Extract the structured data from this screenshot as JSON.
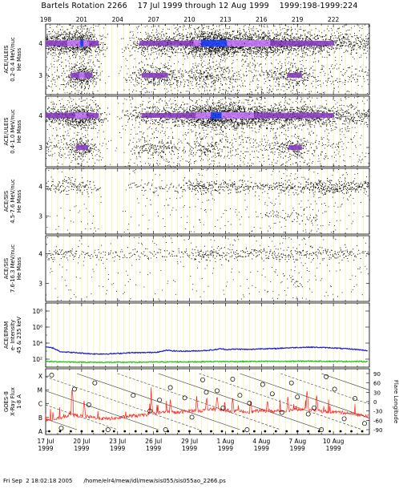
{
  "page_title": "Bartels Rotation 2266    17 Jul 1999 through 12 Aug 1999    1999:198-1999:224",
  "footer": {
    "timestamp": "Fri Sep  2 18:02:18 2005",
    "path": "/home/elr4/mew/idl/mew/sis055/sis055ao_2266.ps"
  },
  "colors": {
    "background": "#ffffff",
    "day_line": "#f4f0a0",
    "density_low": "#000000",
    "density_mid": "#8c3cc8",
    "density_high": "#c878ff",
    "density_peak": "#2040ff",
    "electron_low": "#10c010",
    "electron_high": "#1818d0",
    "xray_flux": "#ff2020"
  },
  "chart_data": [
    {
      "type": "scatter",
      "panel": "ULEIS 0.2-0.4",
      "ylabel": [
        "ACE/ULEIS",
        "0.2-0.4 MeV/nuc",
        "He Mass"
      ],
      "y_ticks": [
        "4",
        "3"
      ],
      "top_ticks": [
        "198",
        "201",
        "204",
        "207",
        "210",
        "213",
        "216",
        "219",
        "222"
      ],
      "x_range_doy": [
        198,
        225
      ],
      "ylim": [
        2.4,
        4.6
      ],
      "bands": [
        {
          "mass": 4.0,
          "label": "He-4",
          "activity": [
            [
              198,
              0.6
            ],
            [
              199.5,
              0.7
            ],
            [
              201,
              0.95
            ],
            [
              202.5,
              0.4
            ],
            [
              203.5,
              0.0
            ],
            [
              205,
              0.25
            ],
            [
              206,
              0.5
            ],
            [
              207.5,
              0.55
            ],
            [
              209.5,
              0.55
            ],
            [
              211,
              0.95
            ],
            [
              212,
              1.0
            ],
            [
              214,
              0.85
            ],
            [
              216,
              0.8
            ],
            [
              218,
              0.65
            ],
            [
              220,
              0.6
            ],
            [
              222,
              0.45
            ],
            [
              224.5,
              0.4
            ]
          ]
        },
        {
          "mass": 3.0,
          "label": "He-3",
          "activity": [
            [
              198,
              0.2
            ],
            [
              199.5,
              0.25
            ],
            [
              201,
              0.85
            ],
            [
              202.5,
              0.15
            ],
            [
              203.5,
              0.0
            ],
            [
              205,
              0.2
            ],
            [
              206,
              0.45
            ],
            [
              207.5,
              0.55
            ],
            [
              209.5,
              0.25
            ],
            [
              211,
              0.45
            ],
            [
              212,
              0.4
            ],
            [
              214,
              0.2
            ],
            [
              216,
              0.2
            ],
            [
              219,
              0.55
            ],
            [
              220,
              0.2
            ],
            [
              222,
              0.2
            ],
            [
              224.5,
              0.15
            ]
          ]
        }
      ]
    },
    {
      "type": "scatter",
      "panel": "ULEIS 0.4-1.0",
      "ylabel": [
        "ACE/ULEIS",
        "0.4-1.0 MeV/nuc",
        "He Mass"
      ],
      "y_ticks": [
        "4",
        "3"
      ],
      "x_range_doy": [
        198,
        225
      ],
      "ylim": [
        2.4,
        4.6
      ],
      "bands": [
        {
          "mass": 4.0,
          "label": "He-4",
          "activity": [
            [
              198,
              0.55
            ],
            [
              199.5,
              0.6
            ],
            [
              201,
              0.85
            ],
            [
              202.5,
              0.4
            ],
            [
              203.5,
              0.05
            ],
            [
              205,
              0.3
            ],
            [
              206,
              0.45
            ],
            [
              207.5,
              0.5
            ],
            [
              209.5,
              0.55
            ],
            [
              211,
              0.85
            ],
            [
              212,
              0.95
            ],
            [
              214,
              0.85
            ],
            [
              216,
              0.7
            ],
            [
              218,
              0.6
            ],
            [
              220,
              0.6
            ],
            [
              222,
              0.45
            ],
            [
              224.5,
              0.4
            ]
          ]
        },
        {
          "mass": 3.0,
          "label": "He-3",
          "activity": [
            [
              198,
              0.15
            ],
            [
              199.5,
              0.2
            ],
            [
              201,
              0.6
            ],
            [
              202.5,
              0.1
            ],
            [
              203.5,
              0.0
            ],
            [
              205,
              0.15
            ],
            [
              206,
              0.35
            ],
            [
              207.5,
              0.4
            ],
            [
              209.5,
              0.2
            ],
            [
              211,
              0.35
            ],
            [
              212,
              0.3
            ],
            [
              214,
              0.15
            ],
            [
              216,
              0.15
            ],
            [
              219,
              0.55
            ],
            [
              220,
              0.15
            ],
            [
              222,
              0.15
            ],
            [
              224.5,
              0.1
            ]
          ]
        }
      ]
    },
    {
      "type": "scatter",
      "panel": "SIS 4.5-7.6",
      "ylabel": [
        "ACE/SIS",
        "4.5-7.6 MeV/nuc",
        "He Mass"
      ],
      "y_ticks": [
        "4",
        "3"
      ],
      "x_range_doy": [
        198,
        225
      ],
      "ylim": [
        2.4,
        4.6
      ],
      "bands": [
        {
          "mass": 4.0,
          "label": "He-4",
          "activity": [
            [
              198,
              0.4
            ],
            [
              200,
              0.45
            ],
            [
              201,
              0.5
            ],
            [
              203,
              0.1
            ],
            [
              205,
              0.2
            ],
            [
              207,
              0.3
            ],
            [
              209,
              0.3
            ],
            [
              211,
              0.6
            ],
            [
              212,
              0.45
            ],
            [
              214,
              0.45
            ],
            [
              216,
              0.4
            ],
            [
              218,
              0.45
            ],
            [
              219,
              0.4
            ],
            [
              221,
              0.6
            ],
            [
              223,
              0.55
            ],
            [
              224.5,
              0.45
            ]
          ]
        },
        {
          "mass": 3.0,
          "label": "He-3",
          "activity": [
            [
              198,
              0.05
            ],
            [
              201,
              0.1
            ],
            [
              205,
              0.05
            ],
            [
              207,
              0.1
            ],
            [
              211,
              0.15
            ],
            [
              214,
              0.1
            ],
            [
              219,
              0.3
            ],
            [
              222,
              0.1
            ],
            [
              224.5,
              0.05
            ]
          ]
        }
      ]
    },
    {
      "type": "scatter",
      "panel": "SIS 7.6-16.3",
      "ylabel": [
        "ACE/SIS",
        "7.6-16.3 MeV/nuc",
        "He Mass"
      ],
      "y_ticks": [
        "4",
        "3"
      ],
      "x_range_doy": [
        198,
        225
      ],
      "ylim": [
        2.4,
        4.6
      ],
      "bands": [
        {
          "mass": 4.0,
          "label": "He-4",
          "activity": [
            [
              198,
              0.35
            ],
            [
              200,
              0.35
            ],
            [
              202,
              0.25
            ],
            [
              204,
              0.2
            ],
            [
              206,
              0.3
            ],
            [
              208,
              0.3
            ],
            [
              210,
              0.3
            ],
            [
              211,
              0.5
            ],
            [
              213,
              0.35
            ],
            [
              215,
              0.35
            ],
            [
              217,
              0.4
            ],
            [
              219,
              0.35
            ],
            [
              221,
              0.4
            ],
            [
              223,
              0.35
            ],
            [
              224.5,
              0.3
            ]
          ]
        },
        {
          "mass": 3.0,
          "label": "He-3",
          "activity": [
            [
              198,
              0.02
            ],
            [
              205,
              0.02
            ],
            [
              211,
              0.08
            ],
            [
              219,
              0.2
            ],
            [
              224.5,
              0.02
            ]
          ]
        }
      ]
    },
    {
      "type": "line",
      "panel": "EPAM electrons",
      "ylabel": [
        "ACE/EPAM",
        "e- Intensity",
        "45 & 235 keV"
      ],
      "y_ticks": [
        "10⁸",
        "10⁶",
        "10⁴",
        "10²"
      ],
      "y_log": true,
      "ylim_exp": [
        1,
        9
      ],
      "x_range_doy": [
        198,
        225
      ],
      "series": [
        {
          "channel": "45 keV",
          "color": "electron_high",
          "x": [
            198.0,
            198.6,
            199.2,
            200.0,
            201.0,
            202.0,
            203.0,
            204.0,
            205.0,
            206.0,
            207.0,
            207.7,
            208.0,
            209.0,
            210.0,
            211.0,
            212.0,
            212.6,
            213.0,
            214.0,
            215.0,
            216.0,
            217.0,
            218.0,
            219.0,
            220.0,
            221.0,
            222.0,
            223.0,
            224.0,
            224.9
          ],
          "y": [
            3.5,
            3.4,
            2.95,
            2.85,
            2.75,
            2.65,
            2.65,
            2.7,
            2.8,
            2.8,
            2.85,
            2.95,
            3.1,
            3.0,
            3.0,
            3.05,
            3.15,
            3.3,
            3.2,
            3.25,
            3.2,
            3.3,
            3.3,
            3.4,
            3.45,
            3.5,
            3.45,
            3.4,
            3.3,
            3.2,
            3.05
          ]
        },
        {
          "channel": "235 keV",
          "color": "electron_low",
          "x": [
            198.0,
            200.0,
            202.0,
            204.0,
            206.0,
            208.0,
            210.0,
            212.0,
            214.0,
            216.0,
            218.0,
            220.0,
            222.0,
            224.9
          ],
          "y": [
            1.7,
            1.65,
            1.6,
            1.6,
            1.62,
            1.65,
            1.65,
            1.7,
            1.7,
            1.72,
            1.72,
            1.75,
            1.72,
            1.7
          ]
        }
      ]
    },
    {
      "type": "line",
      "panel": "GOES-8 X-ray",
      "ylabel": [
        "GOES-8",
        "X-Ray Flux",
        "1-8 A"
      ],
      "y_ticks": [
        "X",
        "M",
        "C",
        "B",
        "A"
      ],
      "y_right_label": "Flare Longitude",
      "y_right_ticks": [
        "90",
        "60",
        "30",
        "0",
        "-30",
        "-60",
        "-90"
      ],
      "x_range_doy": [
        198,
        225
      ],
      "xray_series": {
        "color": "xray_flux",
        "class_level": [
          [
            198,
            0.8
          ],
          [
            199,
            0.9
          ],
          [
            200,
            1.2
          ],
          [
            201,
            1.1
          ],
          [
            202,
            1.0
          ],
          [
            203,
            0.9
          ],
          [
            204,
            0.95
          ],
          [
            205,
            1.1
          ],
          [
            206,
            1.15
          ],
          [
            207,
            1.3
          ],
          [
            208,
            1.4
          ],
          [
            209,
            1.35
          ],
          [
            210,
            1.5
          ],
          [
            211,
            1.5
          ],
          [
            212,
            1.6
          ],
          [
            213,
            1.5
          ],
          [
            214,
            1.45
          ],
          [
            215,
            1.4
          ],
          [
            216,
            1.5
          ],
          [
            217,
            1.45
          ],
          [
            218,
            1.5
          ],
          [
            219,
            1.6
          ],
          [
            220,
            1.55
          ],
          [
            221,
            1.45
          ],
          [
            222,
            1.4
          ],
          [
            223,
            1.35
          ],
          [
            224,
            1.2
          ],
          [
            224.9,
            1.1
          ]
        ],
        "peaks": [
          [
            200.2,
            3.0
          ],
          [
            201.2,
            2.2
          ],
          [
            206.8,
            2.5
          ],
          [
            208.4,
            2.3
          ],
          [
            210.6,
            2.4
          ],
          [
            211.4,
            2.2
          ],
          [
            212.3,
            2.6
          ],
          [
            213.6,
            2.4
          ],
          [
            215.1,
            2.3
          ],
          [
            216.5,
            2.3
          ],
          [
            218.2,
            2.5
          ],
          [
            219.8,
            2.9
          ],
          [
            220.6,
            2.6
          ]
        ]
      },
      "flare_longitudes": [
        {
          "doy": 198.5,
          "lon": 85
        },
        {
          "doy": 200.4,
          "lon": 40
        },
        {
          "doy": 201.6,
          "lon": -10
        },
        {
          "doy": 202.1,
          "lon": 60
        },
        {
          "doy": 205.3,
          "lon": 20
        },
        {
          "doy": 206.7,
          "lon": -30
        },
        {
          "doy": 207.5,
          "lon": 5
        },
        {
          "doy": 208.4,
          "lon": 45
        },
        {
          "doy": 209.6,
          "lon": 12
        },
        {
          "doy": 210.2,
          "lon": -50
        },
        {
          "doy": 211.1,
          "lon": 70
        },
        {
          "doy": 211.4,
          "lon": 30
        },
        {
          "doy": 212.3,
          "lon": 35
        },
        {
          "doy": 212.8,
          "lon": -20
        },
        {
          "doy": 213.6,
          "lon": 72
        },
        {
          "doy": 214.2,
          "lon": 20
        },
        {
          "doy": 215.0,
          "lon": -5
        },
        {
          "doy": 216.1,
          "lon": 55
        },
        {
          "doy": 216.9,
          "lon": 25
        },
        {
          "doy": 217.7,
          "lon": -35
        },
        {
          "doy": 218.5,
          "lon": 60
        },
        {
          "doy": 219.0,
          "lon": 15
        },
        {
          "doy": 219.9,
          "lon": -40
        },
        {
          "doy": 220.4,
          "lon": -20
        },
        {
          "doy": 221.4,
          "lon": 80
        },
        {
          "doy": 222.1,
          "lon": 40
        },
        {
          "doy": 222.9,
          "lon": -55
        },
        {
          "doy": 223.8,
          "lon": 10
        },
        {
          "doy": 224.6,
          "lon": -70
        },
        {
          "doy": 199.3,
          "lon": -85
        },
        {
          "doy": 203.2,
          "lon": -90
        },
        {
          "doy": 208.0,
          "lon": -90
        },
        {
          "doy": 214.8,
          "lon": -90
        },
        {
          "doy": 221.0,
          "lon": -90
        }
      ],
      "rotation_tracks_start_doy": [
        187,
        190.4,
        193.8,
        197.2,
        200.6,
        204.0,
        207.4,
        210.8,
        214.2,
        217.6,
        221.0
      ]
    }
  ],
  "x_axis": {
    "labels": [
      {
        "doy": 198,
        "day": "17 Jul",
        "year": "1999"
      },
      {
        "doy": 201,
        "day": "20 Jul",
        "year": "1999"
      },
      {
        "doy": 204,
        "day": "23 Jul",
        "year": "1999"
      },
      {
        "doy": 207,
        "day": "26 Jul",
        "year": "1999"
      },
      {
        "doy": 210,
        "day": "29 Jul",
        "year": "1999"
      },
      {
        "doy": 213,
        "day": "1 Aug",
        "year": "1999"
      },
      {
        "doy": 216,
        "day": "4 Aug",
        "year": "1999"
      },
      {
        "doy": 219,
        "day": "7 Aug",
        "year": "1999"
      },
      {
        "doy": 222,
        "day": "10 Aug",
        "year": "1999"
      }
    ]
  }
}
